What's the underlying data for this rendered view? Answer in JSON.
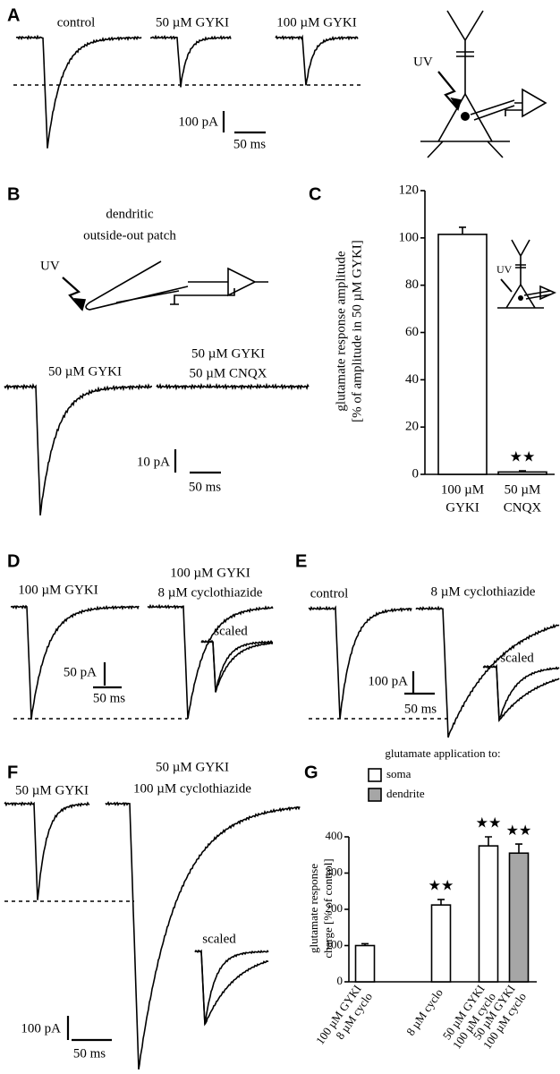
{
  "panels": {
    "A": {
      "label": "A",
      "texts": [
        "control",
        "50 µM GYKI",
        "100 µM GYKI",
        "100 pA",
        "50 ms",
        "UV"
      ]
    },
    "B": {
      "label": "B",
      "texts": [
        "dendritic",
        "outside-out patch",
        "UV",
        "50 µM GYKI",
        "50 µM GYKI",
        "50 µM CNQX",
        "10 pA",
        "50 ms"
      ]
    },
    "C": {
      "label": "C",
      "texts": [
        "UV"
      ]
    },
    "D": {
      "label": "D",
      "texts": [
        "100 µM GYKI",
        "100 µM GYKI",
        "8 µM cyclothiazide",
        "scaled",
        "50 pA",
        "50 ms"
      ]
    },
    "E": {
      "label": "E",
      "texts": [
        "control",
        "8 µM cyclothiazide",
        "scaled",
        "100 pA",
        "50 ms"
      ]
    },
    "F": {
      "label": "F",
      "texts": [
        "50 µM GYKI",
        "50 µM GYKI",
        "100 µM cyclothiazide",
        "scaled",
        "100 pA",
        "50 ms"
      ]
    },
    "G": {
      "label": "G"
    }
  },
  "chart_data": [
    {
      "type": "bar",
      "y_label": [
        "glutamate response amplitude",
        "[% of amplitude in 50 µM GYKI]"
      ],
      "categories": [
        [
          "100 µM",
          "GYKI"
        ],
        [
          "50 µM",
          "CNQX"
        ]
      ],
      "series": [
        {
          "color": "#ffffff",
          "values": [
            101.5,
            1
          ],
          "errors": [
            3,
            0.5
          ]
        }
      ],
      "ylim": [
        0,
        120
      ],
      "yticks": [
        0,
        20,
        40,
        60,
        80,
        100,
        120
      ],
      "annotations": [
        null,
        "★★"
      ]
    },
    {
      "type": "bar",
      "legend_title": "glutamate application to:",
      "y_label": [
        "glutamate response",
        "charge [% of control]"
      ],
      "categories": [
        [
          "100 µM GYKI",
          "8 µM cyclo"
        ],
        [
          "8 µM cyclo"
        ],
        [
          "50 µM GYKI",
          "100 µM cyclo"
        ],
        [
          "50 µM GYKI",
          "100 µM cyclo"
        ]
      ],
      "series": [
        {
          "name": "soma",
          "color": "#ffffff",
          "values": [
            100,
            212,
            375,
            null
          ],
          "errors": [
            5,
            15,
            25,
            null
          ]
        },
        {
          "name": "dendrite",
          "color": "#a6a6a6",
          "values": [
            null,
            null,
            null,
            355
          ],
          "errors": [
            null,
            null,
            null,
            25
          ]
        }
      ],
      "ylim": [
        0,
        400
      ],
      "yticks": [
        0,
        100,
        200,
        300,
        400
      ],
      "annotations": [
        null,
        "★★",
        "★★",
        "★★"
      ]
    }
  ]
}
